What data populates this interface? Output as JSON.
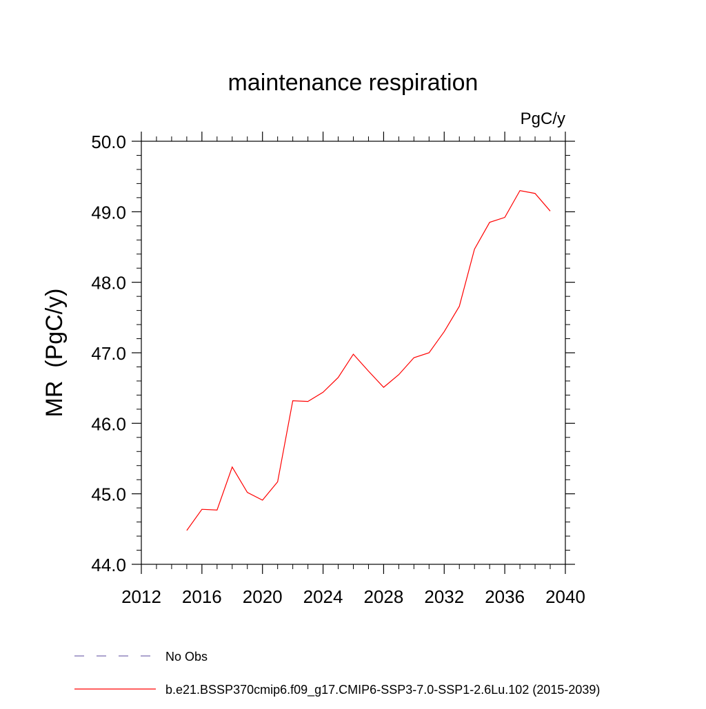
{
  "chart_data": {
    "type": "line",
    "title": "maintenance respiration",
    "units_label": "PgC/y",
    "ylabel": "MR  (PgC/y)",
    "xlabel": "",
    "xlim": [
      2012,
      2040
    ],
    "ylim": [
      44.0,
      50.0
    ],
    "x_ticks": [
      "2012",
      "2016",
      "2020",
      "2024",
      "2028",
      "2032",
      "2036",
      "2040"
    ],
    "y_ticks": [
      "44.0",
      "45.0",
      "46.0",
      "47.0",
      "48.0",
      "49.0",
      "50.0"
    ],
    "grid": false,
    "legend_position": "bottom",
    "x": [
      2015,
      2016,
      2017,
      2018,
      2019,
      2020,
      2021,
      2022,
      2023,
      2024,
      2025,
      2026,
      2027,
      2028,
      2029,
      2030,
      2031,
      2032,
      2033,
      2034,
      2035,
      2036,
      2037,
      2038,
      2039
    ],
    "series": [
      {
        "name": "b.e21.BSSP370cmip6.f09_g17.CMIP6-SSP3-7.0-SSP1-2.6Lu.102 (2015-2039)",
        "color": "#ff0000",
        "values": [
          44.48,
          44.78,
          44.77,
          45.38,
          45.02,
          44.91,
          45.17,
          46.32,
          46.31,
          46.44,
          46.65,
          46.98,
          46.74,
          46.51,
          46.69,
          46.93,
          47.0,
          47.3,
          47.66,
          48.47,
          48.85,
          48.92,
          49.3,
          49.26,
          49.01
        ]
      }
    ],
    "legend": [
      {
        "label": "No Obs",
        "color": "#7b6cb0",
        "style": "dashed"
      },
      {
        "label": "b.e21.BSSP370cmip6.f09_g17.CMIP6-SSP3-7.0-SSP1-2.6Lu.102 (2015-2039)",
        "color": "#ff0000",
        "style": "solid"
      }
    ]
  }
}
